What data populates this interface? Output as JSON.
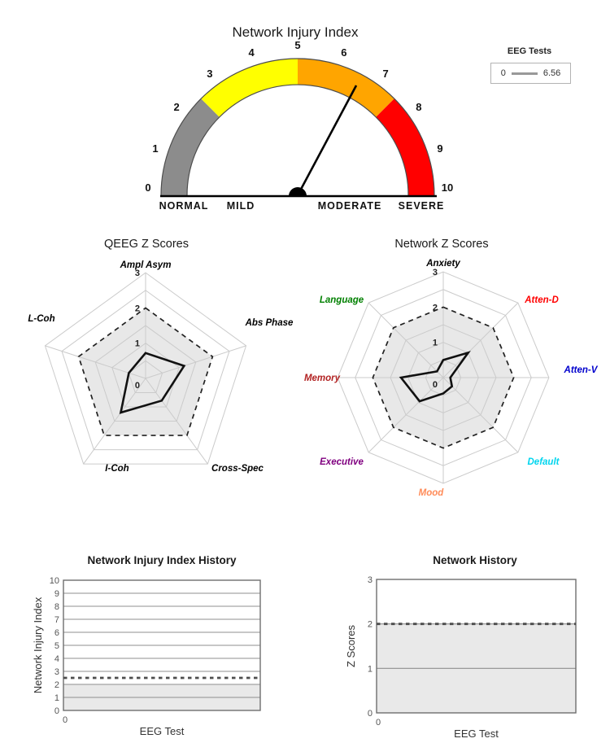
{
  "legend": {
    "title": "EEG Tests",
    "items": [
      {
        "label": "0",
        "value": "6.56",
        "line_color": "#999999"
      }
    ]
  },
  "chart_data": [
    {
      "id": "gauge",
      "type": "gauge",
      "title": "Network Injury Index",
      "min": 0,
      "max": 10,
      "value": 6.56,
      "ticks": [
        0,
        1,
        2,
        3,
        4,
        5,
        6,
        7,
        8,
        9,
        10
      ],
      "zones": [
        {
          "label": "NORMAL",
          "from": 0,
          "to": 2.5,
          "color": "#8c8c8c"
        },
        {
          "label": "MILD",
          "from": 2.5,
          "to": 5,
          "color": "#ffff00"
        },
        {
          "label": "MODERATE",
          "from": 5,
          "to": 7.5,
          "color": "#ffa500"
        },
        {
          "label": "SEVERE",
          "from": 7.5,
          "to": 10,
          "color": "#ff0000"
        }
      ],
      "needle_color": "#000000"
    },
    {
      "id": "qeeg-radar",
      "type": "radar",
      "title": "QEEG Z Scores",
      "rmax": 3,
      "ring_step": 0.5,
      "threshold": 2,
      "ring_tick_labels": [
        "0",
        "1",
        "2",
        "3"
      ],
      "axes": [
        {
          "label": "Ampl Asym",
          "color": "#000000",
          "value": 0.72
        },
        {
          "label": "Abs Phase",
          "color": "#000000",
          "value": 1.15
        },
        {
          "label": "Cross-Spec",
          "color": "#000000",
          "value": 0.78
        },
        {
          "label": "I-Coh",
          "color": "#000000",
          "value": 1.2
        },
        {
          "label": "L-Coh",
          "color": "#000000",
          "value": 0.5
        }
      ],
      "series_color": "#111111",
      "threshold_fill": "#e8e8e8"
    },
    {
      "id": "network-radar",
      "type": "radar",
      "title": "Network Z Scores",
      "rmax": 3,
      "ring_step": 0.5,
      "threshold": 2,
      "ring_tick_labels": [
        "0",
        "1",
        "2",
        "3"
      ],
      "axes": [
        {
          "label": "Anxiety",
          "color": "#000000",
          "value": 0.5
        },
        {
          "label": "Atten-D",
          "color": "#ff0000",
          "value": 1.0
        },
        {
          "label": "Atten-V",
          "color": "#0000cd",
          "value": 0.2
        },
        {
          "label": "Default",
          "color": "#00d5ee",
          "value": 0.35
        },
        {
          "label": "Mood",
          "color": "#ff8c5a",
          "value": 0.45
        },
        {
          "label": "Executive",
          "color": "#800080",
          "value": 0.95
        },
        {
          "label": "Memory",
          "color": "#b22222",
          "value": 1.2
        },
        {
          "label": "Language",
          "color": "#008000",
          "value": 0.25
        }
      ],
      "series_color": "#111111",
      "threshold_fill": "#e8e8e8"
    },
    {
      "id": "nii-history",
      "type": "line",
      "title": "Network Injury Index History",
      "xlabel": "EEG Test",
      "ylabel": "Network Injury Index",
      "ylim": [
        0,
        10
      ],
      "ytick_step": 1,
      "xtick_labels": [
        "0"
      ],
      "threshold_dashed_y": 2.5,
      "shaded_below_y": 2,
      "series": []
    },
    {
      "id": "network-history",
      "type": "line",
      "title": "Network History",
      "xlabel": "EEG Test",
      "ylabel": "Z Scores",
      "ylim": [
        0,
        3
      ],
      "ytick_step": 1,
      "xtick_labels": [
        "0"
      ],
      "threshold_dashed_y": 2,
      "shaded_below_y": 2,
      "series": []
    }
  ]
}
